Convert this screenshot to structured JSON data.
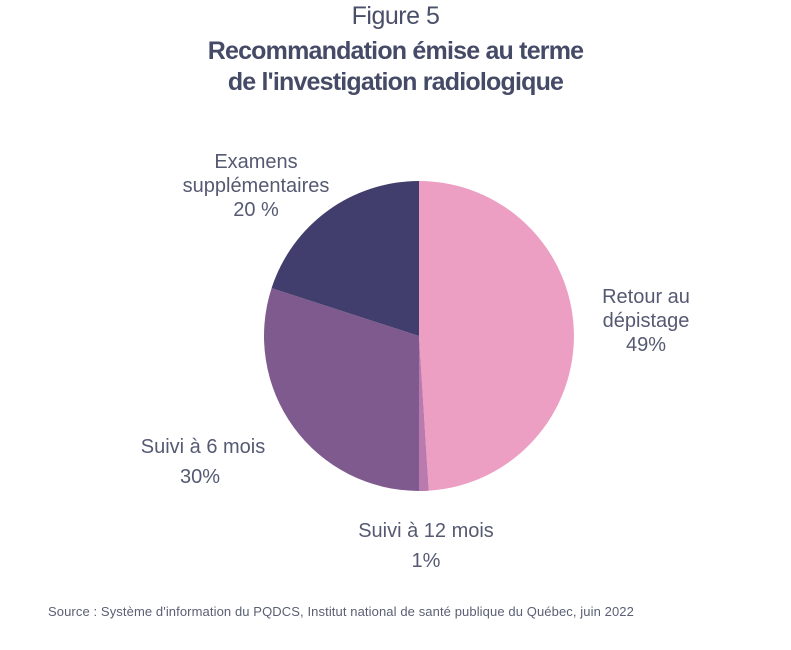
{
  "figure": {
    "label": "Figure 5",
    "title_line1": "Recommandation émise au terme",
    "title_line2": "de l'investigation radiologique"
  },
  "chart_data": {
    "type": "pie",
    "categories": [
      "Retour au dépistage",
      "Suivi à 12 mois",
      "Suivi à 6 mois",
      "Examens supplémentaires"
    ],
    "values": [
      49,
      1,
      30,
      20
    ],
    "colors": [
      "#ec9fc3",
      "#b97aae",
      "#7f5a8e",
      "#413d6c"
    ],
    "labels": [
      {
        "line1": "Retour au",
        "line2": "dépistage",
        "value": "49%"
      },
      {
        "line1": "Suivi à 12 mois",
        "line2": "",
        "value": "1%"
      },
      {
        "line1": "Suivi à 6 mois",
        "line2": "",
        "value": "30%"
      },
      {
        "line1": "Examens",
        "line2": "supplémentaires",
        "value": "20 %"
      }
    ],
    "start": "12 o'clock",
    "direction": "clockwise",
    "legend": "none"
  },
  "source": "Source :  Système d'information du PQDCS, Institut national de santé publique du Québec, juin 2022"
}
